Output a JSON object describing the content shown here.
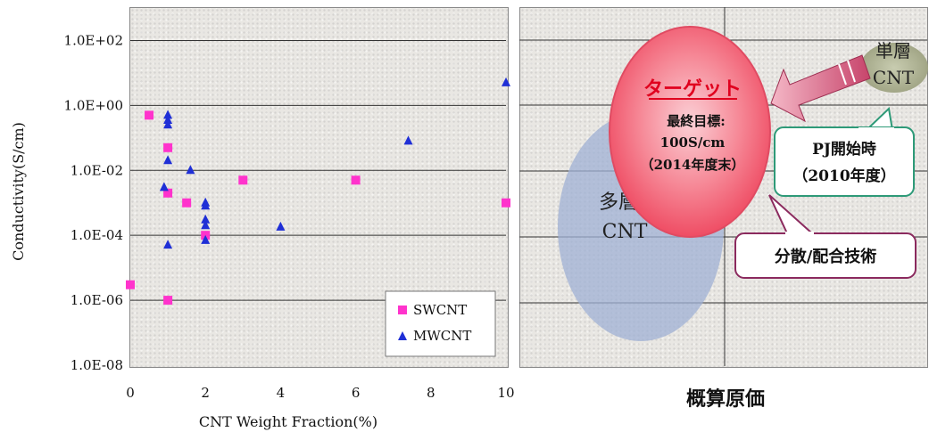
{
  "chart_data": [
    {
      "type": "scatter",
      "title": "",
      "xlabel": "CNT Weight Fraction(%)",
      "ylabel": "Conductivity(S/cm)",
      "x_ticks": [
        0,
        2,
        4,
        6,
        8,
        10
      ],
      "xlim": [
        0,
        10
      ],
      "y_scale": "log",
      "ylim": [
        1e-08,
        1000
      ],
      "y_ticks": [
        1e-08,
        1e-06,
        0.0001,
        0.01,
        1,
        100
      ],
      "y_tick_labels": [
        "1.0E-08",
        "1.0E-06",
        "1.0E-04",
        "1.0E-02",
        "1.0E+00",
        "1.0E+02"
      ],
      "grid": "horizontal",
      "legend_position": "bottom-right",
      "series": [
        {
          "name": "SWCNT",
          "marker": "square",
          "color": "#ff33cc",
          "points": [
            [
              0,
              3e-06
            ],
            [
              0.5,
              0.5
            ],
            [
              1,
              0.05
            ],
            [
              1,
              0.002
            ],
            [
              1,
              1e-06
            ],
            [
              1.5,
              0.001
            ],
            [
              2,
              0.0001
            ],
            [
              3,
              0.005
            ],
            [
              6,
              0.005
            ],
            [
              10,
              0.001
            ]
          ]
        },
        {
          "name": "MWCNT",
          "marker": "triangle",
          "color": "#1f2fd6",
          "points": [
            [
              0.9,
              0.003
            ],
            [
              1,
              0.5
            ],
            [
              1,
              0.35
            ],
            [
              1,
              0.25
            ],
            [
              1,
              0.02
            ],
            [
              1,
              5e-05
            ],
            [
              1.6,
              0.01
            ],
            [
              2,
              0.001
            ],
            [
              2,
              0.0008
            ],
            [
              2,
              0.0003
            ],
            [
              2,
              0.0002
            ],
            [
              2,
              7e-05
            ],
            [
              4,
              0.00018
            ],
            [
              7.4,
              0.08
            ],
            [
              10,
              5
            ]
          ]
        }
      ]
    }
  ],
  "diagram": {
    "title": "概算原価",
    "target": {
      "heading": "ターゲット",
      "line1": "最終目標:",
      "line2": "100S/cm",
      "line3": "（2014年度末）"
    },
    "multi_wall": {
      "line1": "多層",
      "line2": "CNT"
    },
    "single_wall": {
      "line1": "単層",
      "line2": "CNT"
    },
    "pj_start": {
      "line1": "PJ開始時",
      "line2": "（2010年度）"
    },
    "dispersion": {
      "label": "分散/配合技術"
    },
    "colors": {
      "target_fill": "#f2667a",
      "target_heading": "#e0001e",
      "multi_fill": "#9fb0d4",
      "single_fill": "#a8ad8a",
      "pj_border": "#2e9a78",
      "dispersion_border": "#8b2a5e",
      "arrow": "#c7446b"
    }
  }
}
